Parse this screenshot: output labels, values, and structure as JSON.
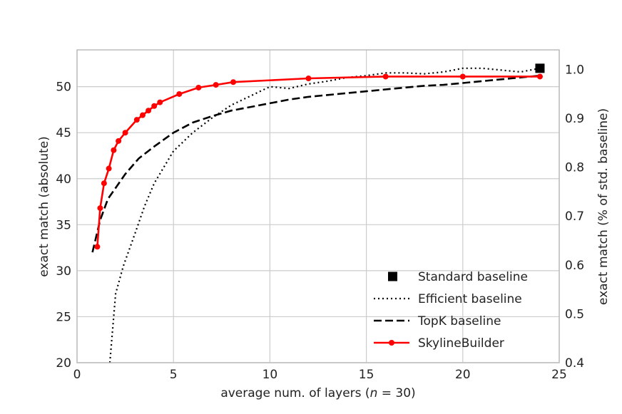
{
  "chart_data": {
    "type": "line",
    "xlabel": "average num. of layers (",
    "xlabel_var": "n",
    "xlabel_tail": " = 30)",
    "ylabel": "exact match (absolute)",
    "ylabel_right": "exact match (% of std. baseline)",
    "xlim": [
      0,
      25
    ],
    "ylim": [
      20,
      54
    ],
    "ylim_right": [
      0.4,
      1.04
    ],
    "xticks": [
      0,
      5,
      10,
      15,
      20,
      25
    ],
    "yticks": [
      20,
      25,
      30,
      35,
      40,
      45,
      50
    ],
    "yticks_right": [
      0.4,
      0.5,
      0.6,
      0.7,
      0.8,
      0.9,
      1.0
    ],
    "xtick_labels": [
      "0",
      "5",
      "10",
      "15",
      "20",
      "25"
    ],
    "ytick_labels": [
      "20",
      "25",
      "30",
      "35",
      "40",
      "45",
      "50"
    ],
    "ytick_labels_right": [
      "0.4",
      "0.5",
      "0.6",
      "0.7",
      "0.8",
      "0.9",
      "1.0"
    ],
    "grid": true,
    "legend_position": "lower-right",
    "series": [
      {
        "name": "Standard baseline",
        "style": "square-marker",
        "color": "#000000",
        "x": [
          24
        ],
        "y": [
          52.0
        ]
      },
      {
        "name": "Efficient baseline",
        "style": "dotted",
        "color": "#000000",
        "x": [
          1.7,
          2.0,
          2.4,
          3.0,
          3.5,
          4.0,
          5.0,
          6.0,
          7.0,
          8.0,
          9.0,
          10.0,
          11.0,
          12.0,
          13.0,
          14.0,
          15.0,
          16.0,
          17.0,
          18.0,
          19.0,
          20.0,
          21.0,
          22.0,
          23.0,
          24.0
        ],
        "y": [
          20.0,
          27.5,
          30.5,
          34.0,
          37.0,
          39.5,
          43.0,
          45.0,
          46.6,
          48.0,
          49.0,
          50.0,
          49.8,
          50.3,
          50.6,
          51.0,
          51.2,
          51.5,
          51.5,
          51.4,
          51.6,
          52.0,
          52.0,
          51.8,
          51.6,
          52.0
        ]
      },
      {
        "name": "TopK baseline",
        "style": "dashed",
        "color": "#000000",
        "x": [
          0.8,
          1.2,
          1.6,
          2.0,
          2.5,
          3.2,
          4.0,
          5.0,
          6.0,
          7.0,
          8.0,
          9.0,
          10.0,
          11.0,
          12.0,
          13.0,
          14.0,
          15.0,
          16.0,
          17.0,
          18.0,
          19.0,
          20.0,
          21.0,
          22.0,
          23.0,
          24.0
        ],
        "y": [
          32.0,
          35.5,
          37.8,
          39.0,
          40.5,
          42.2,
          43.5,
          45.0,
          46.1,
          46.8,
          47.4,
          47.8,
          48.2,
          48.6,
          48.9,
          49.1,
          49.3,
          49.5,
          49.7,
          49.9,
          50.1,
          50.2,
          50.4,
          50.6,
          50.8,
          51.0,
          51.2
        ]
      },
      {
        "name": "SkylineBuilder",
        "style": "solid-circle",
        "color": "#ff0000",
        "x": [
          1.05,
          1.2,
          1.4,
          1.65,
          1.9,
          2.15,
          2.5,
          3.1,
          3.4,
          3.7,
          4.0,
          4.3,
          5.3,
          6.3,
          7.2,
          8.1,
          12.0,
          16.0,
          20.0,
          24.0
        ],
        "y": [
          32.6,
          36.8,
          39.5,
          41.1,
          43.1,
          44.1,
          45.0,
          46.4,
          46.9,
          47.4,
          47.9,
          48.3,
          49.2,
          49.9,
          50.2,
          50.5,
          50.9,
          51.1,
          51.1,
          51.1
        ]
      }
    ]
  }
}
